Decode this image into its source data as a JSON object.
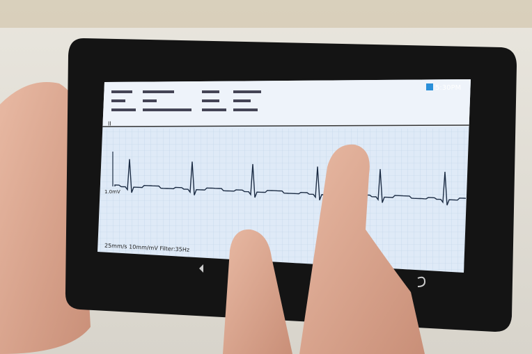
{
  "status_bar": {
    "time": "5:30PM"
  },
  "ecg": {
    "lead": "II",
    "scale": "1.0mV",
    "footer": "25mm/s 10mm/mV Filter:35Hz"
  }
}
